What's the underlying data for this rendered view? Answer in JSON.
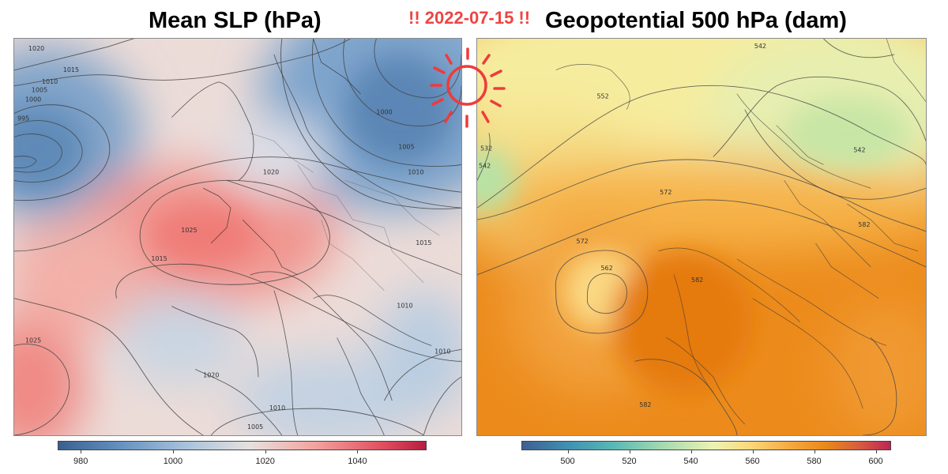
{
  "banner": {
    "date": "!! 2022-07-15 !!"
  },
  "panels": [
    {
      "title": "Mean SLP (hPa)",
      "contour_labels": [
        "1020",
        "1015",
        "1010",
        "1005",
        "1000",
        "995",
        "1020",
        "1025",
        "1015",
        "1025",
        "1010",
        "1005",
        "1020",
        "1010",
        "1000",
        "1005",
        "1010",
        "1010",
        "1015"
      ],
      "colorbar": {
        "ticks": [
          "980",
          "1000",
          "1020",
          "1040"
        ],
        "tick_values": [
          980,
          1000,
          1020,
          1040
        ],
        "range": [
          975,
          1055
        ],
        "colors": [
          "#3a5f8f",
          "#a9c3dc",
          "#e6e1df",
          "#f3a29d",
          "#b81c3f"
        ]
      }
    },
    {
      "title": "Geopotential 500 hPa (dam)",
      "contour_labels": [
        "542",
        "552",
        "532",
        "542",
        "542",
        "572",
        "582",
        "572",
        "562",
        "582",
        "582"
      ],
      "colorbar": {
        "ticks": [
          "500",
          "520",
          "540",
          "560",
          "580",
          "600"
        ],
        "tick_values": [
          500,
          520,
          540,
          560,
          580,
          600
        ],
        "range": [
          485,
          605
        ],
        "colors": [
          "#3f5f93",
          "#59b9b6",
          "#eef3b3",
          "#f7ab45",
          "#ea8a18",
          "#bd2555"
        ]
      }
    }
  ]
}
